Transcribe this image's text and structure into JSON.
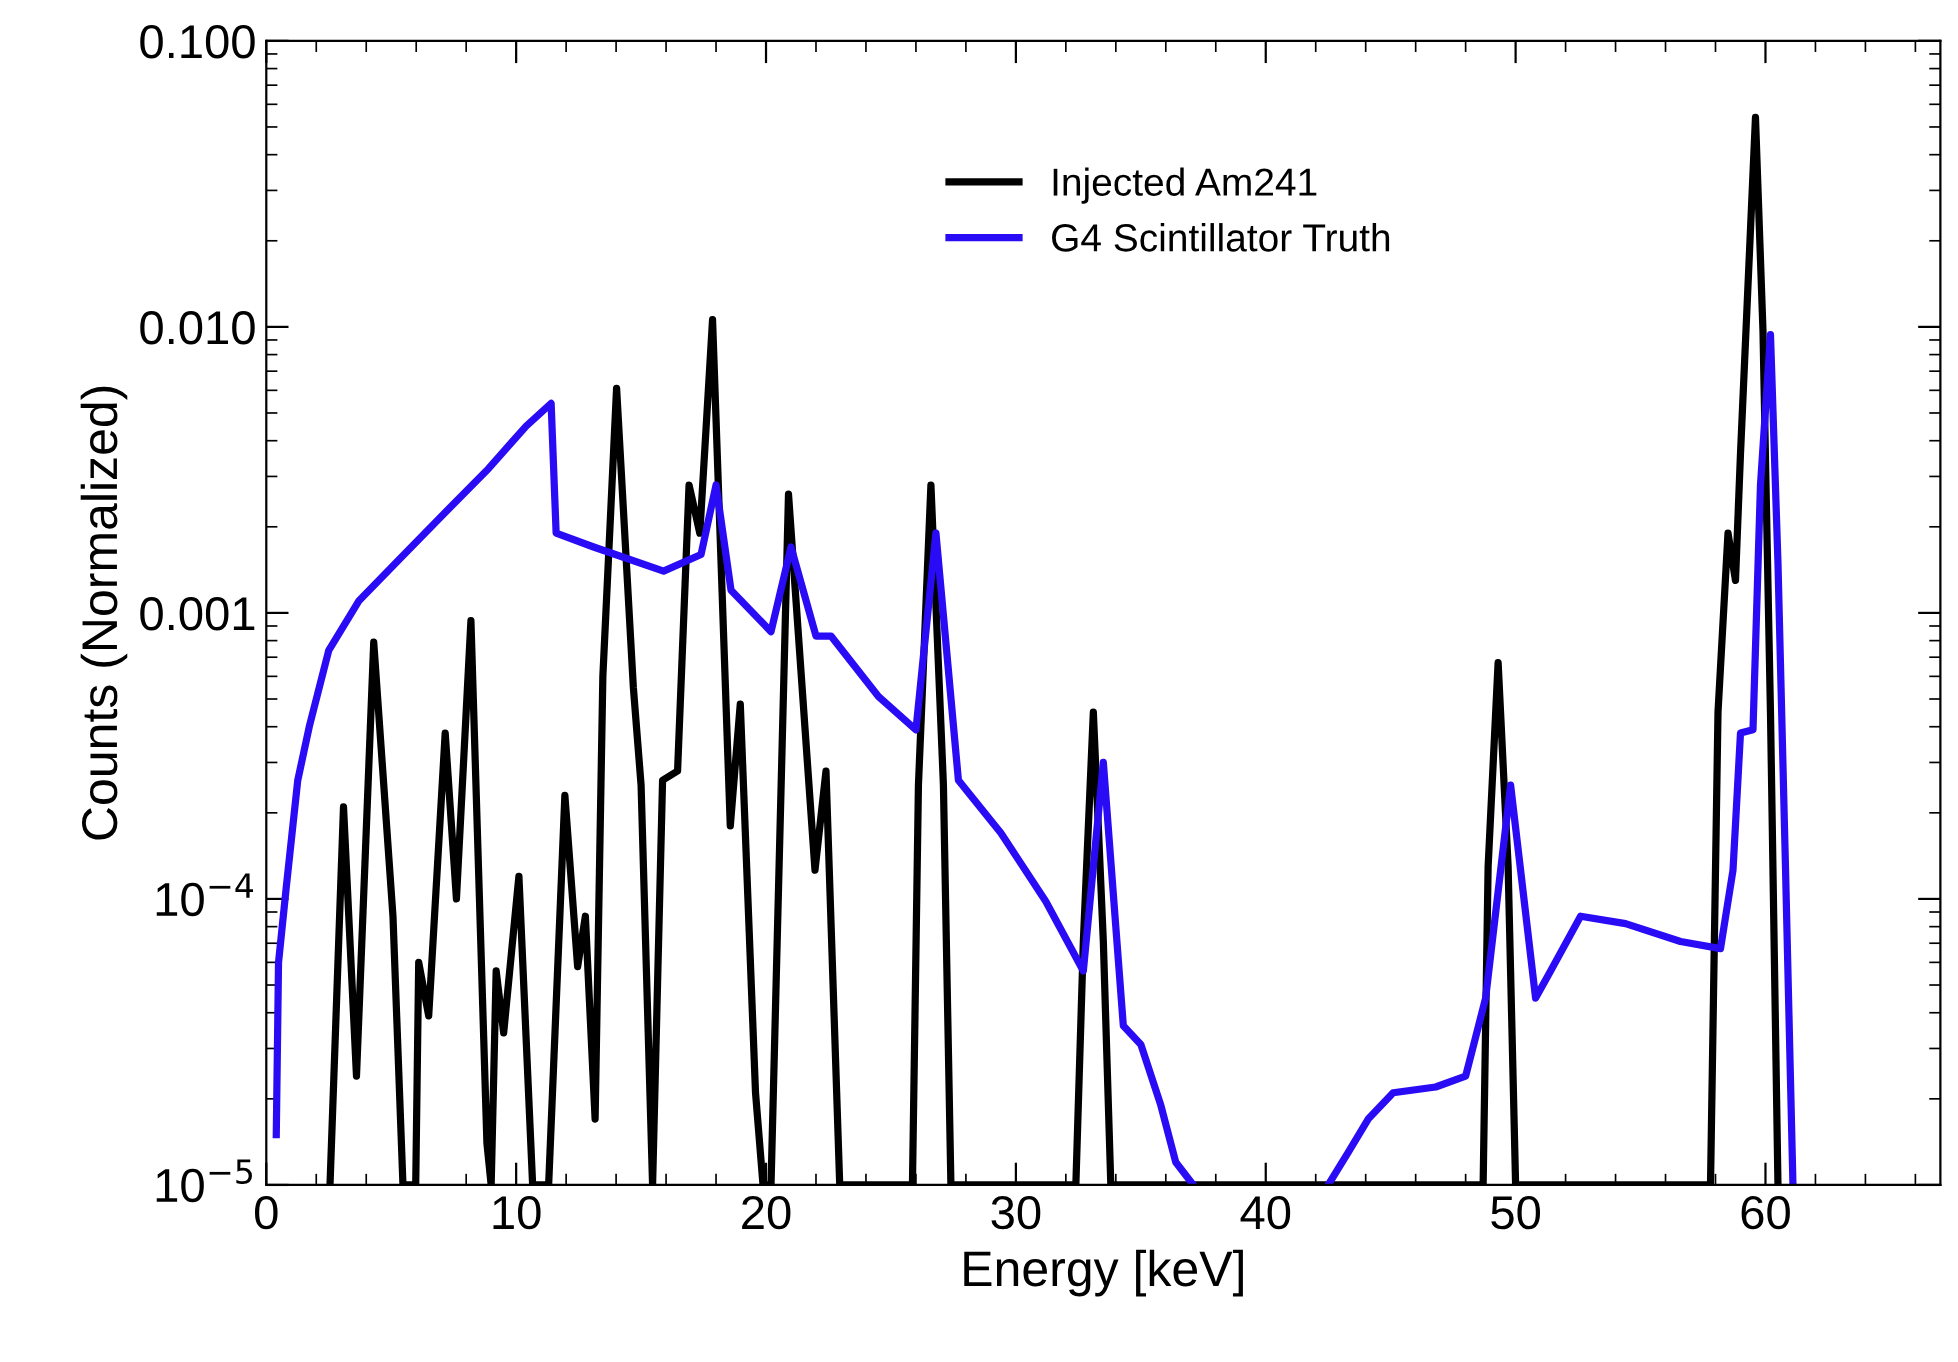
{
  "chart_data": {
    "type": "line",
    "xlabel": "Energy [keV]",
    "ylabel": "Counts (Normalized)",
    "log": "y",
    "xlim": [
      0,
      67
    ],
    "xticks": [
      0,
      10,
      20,
      30,
      40,
      50,
      60
    ],
    "ylim": [
      1e-05,
      0.1
    ],
    "yticks": [
      {
        "value": 1e-05,
        "label": "10$^{−5}$"
      },
      {
        "value": 0.0001,
        "label": "10$^{−4}$"
      },
      {
        "value": 0.001,
        "label": "0.001"
      },
      {
        "value": 0.01,
        "label": "0.010"
      },
      {
        "value": 0.1,
        "label": "0.100"
      }
    ],
    "grid": false,
    "legend": "top",
    "line_style": "solid",
    "marker": "none",
    "series": [
      {
        "name": "Injected Am241",
        "color": "#000000",
        "x": [
          2.55,
          3.09,
          3.61,
          4.3,
          5.07,
          5.47,
          5.98,
          6.1,
          6.5,
          7.16,
          7.61,
          8.19,
          8.83,
          9.0,
          9.2,
          9.5,
          10.11,
          10.66,
          11.3,
          11.95,
          12.46,
          12.77,
          13.16,
          13.47,
          14.02,
          14.69,
          15.0,
          15.46,
          15.86,
          16.46,
          16.92,
          17.35,
          17.86,
          18.57,
          18.97,
          19.58,
          19.88,
          20.2,
          20.9,
          21.96,
          22.4,
          22.95,
          25.86,
          26.1,
          26.6,
          27.1,
          27.4,
          32.4,
          32.7,
          33.1,
          33.5,
          33.8,
          48.7,
          48.9,
          49.3,
          49.7,
          50.0,
          57.8,
          58.1,
          58.5,
          58.8,
          59.0,
          59.6,
          59.9,
          60.2,
          60.5
        ],
        "values": [
          1e-05,
          0.00021,
          2.4e-05,
          0.00079,
          8.7e-05,
          1e-05,
          1e-05,
          6e-05,
          3.9e-05,
          0.00038,
          0.0001,
          0.00094,
          1.4e-05,
          1e-05,
          5.6e-05,
          3.4e-05,
          0.00012,
          1e-05,
          1e-05,
          0.00023,
          5.8e-05,
          8.7e-05,
          1.7e-05,
          0.0006,
          0.0061,
          0.00055,
          0.00025,
          1e-05,
          0.00026,
          0.00028,
          0.0028,
          0.0019,
          0.0106,
          0.00018,
          0.00048,
          2.1e-05,
          1e-05,
          1e-05,
          0.0026,
          0.000126,
          0.00028,
          1e-05,
          1e-05,
          0.00025,
          0.0028,
          0.00025,
          1e-05,
          1e-05,
          7.1e-05,
          0.00045,
          7.1e-05,
          1e-05,
          1e-05,
          0.00013,
          0.00067,
          0.00013,
          1e-05,
          1e-05,
          0.00045,
          0.0019,
          0.0013,
          0.0036,
          0.054,
          0.0097,
          0.00045,
          1e-05
        ]
      },
      {
        "name": "G4 Scintillator Truth",
        "color": "#2a0bf5",
        "x": [
          0.4,
          0.49,
          0.8,
          1.26,
          1.72,
          2.5,
          3.7,
          5.2,
          7.06,
          8.9,
          10.4,
          11.4,
          11.6,
          13.1,
          15.9,
          17.4,
          18.0,
          18.6,
          20.2,
          21.0,
          22.0,
          22.6,
          24.5,
          26.0,
          26.8,
          27.7,
          29.4,
          31.2,
          32.7,
          33.5,
          34.3,
          35.0,
          35.8,
          36.4,
          37.1,
          40.0,
          42.5,
          43.3,
          44.1,
          45.1,
          46.8,
          48.0,
          48.8,
          49.8,
          50.8,
          51.4,
          52.6,
          54.4,
          56.6,
          58.2,
          58.7,
          59.0,
          59.5,
          59.8,
          60.2,
          60.5,
          60.8,
          61.1
        ],
        "values": [
          1.5e-05,
          6e-05,
          0.00011,
          0.00026,
          0.0004,
          0.00074,
          0.0011,
          0.0015,
          0.0022,
          0.0032,
          0.0045,
          0.0054,
          0.0019,
          0.0017,
          0.0014,
          0.0016,
          0.0028,
          0.0012,
          0.00086,
          0.0017,
          0.00083,
          0.00083,
          0.00051,
          0.00039,
          0.0019,
          0.00026,
          0.00017,
          9.8e-05,
          5.6e-05,
          0.0003,
          3.6e-05,
          3.1e-05,
          1.9e-05,
          1.2e-05,
          1e-05,
          null,
          1e-05,
          1.3e-05,
          1.7e-05,
          2.1e-05,
          2.2e-05,
          2.4e-05,
          4.5e-05,
          0.00025,
          4.5e-05,
          5.6e-05,
          8.7e-05,
          8.2e-05,
          7.1e-05,
          6.7e-05,
          0.000126,
          0.00038,
          0.00039,
          0.0028,
          0.0094,
          0.0015,
          0.00013,
          1e-05
        ]
      }
    ]
  }
}
